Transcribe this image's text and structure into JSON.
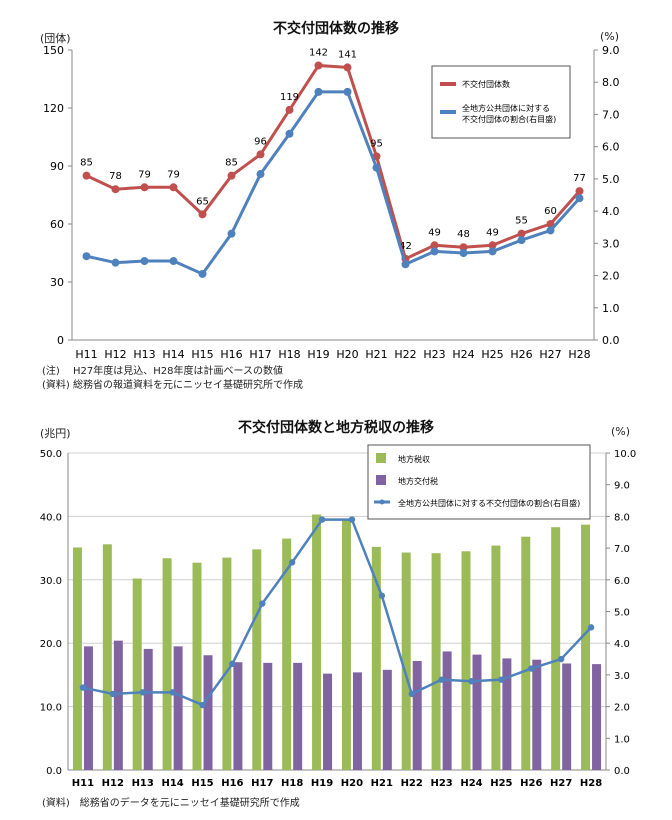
{
  "chart_data": [
    {
      "type": "line",
      "title": "不交付団体数の推移",
      "left_unit": "(団体)",
      "right_unit": "(%)",
      "categories": [
        "H11",
        "H12",
        "H13",
        "H14",
        "H15",
        "H16",
        "H17",
        "H18",
        "H19",
        "H20",
        "H21",
        "H22",
        "H23",
        "H24",
        "H25",
        "H26",
        "H27",
        "H28"
      ],
      "left_ticks": [
        "0",
        "30",
        "60",
        "90",
        "120",
        "150"
      ],
      "right_ticks": [
        "0.0",
        "1.0",
        "2.0",
        "3.0",
        "4.0",
        "5.0",
        "6.0",
        "7.0",
        "8.0",
        "9.0"
      ],
      "ylim_left": [
        0,
        150
      ],
      "ylim_right": [
        0,
        9
      ],
      "series": [
        {
          "name": "不交付団体数",
          "axis": "left",
          "color": "#c0504d",
          "values": [
            85,
            78,
            79,
            79,
            65,
            85,
            96,
            119,
            142,
            141,
            95,
            42,
            49,
            48,
            49,
            55,
            60,
            77
          ],
          "data_labels": [
            "85",
            "78",
            "79",
            "79",
            "65",
            "85",
            "96",
            "119",
            "142",
            "141",
            "95",
            "42",
            "49",
            "48",
            "49",
            "55",
            "60",
            "77"
          ]
        },
        {
          "name": "全地方公共団体に対する\n不交付団体の割合(右目盛)",
          "axis": "right",
          "color": "#4f81bd",
          "values": [
            2.6,
            2.4,
            2.45,
            2.45,
            2.05,
            3.3,
            5.15,
            6.4,
            7.7,
            7.7,
            5.35,
            2.35,
            2.75,
            2.7,
            2.75,
            3.1,
            3.4,
            4.4
          ]
        }
      ],
      "legend_position": "top-right",
      "notes": [
        "(注)　 H27年度は見込、H28年度は計画ベースの数値",
        "(資料) 総務省の報道資料を元にニッセイ基礎研究所で作成"
      ]
    },
    {
      "type": "bar",
      "title": "不交付団体数と地方税収の推移",
      "left_unit": "(兆円)",
      "right_unit": "(%)",
      "categories": [
        "H11",
        "H12",
        "H13",
        "H14",
        "H15",
        "H16",
        "H17",
        "H18",
        "H19",
        "H20",
        "H21",
        "H22",
        "H23",
        "H24",
        "H25",
        "H26",
        "H27",
        "H28"
      ],
      "left_ticks": [
        "0.0",
        "10.0",
        "20.0",
        "30.0",
        "40.0",
        "50.0"
      ],
      "right_ticks": [
        "0.0",
        "1.0",
        "2.0",
        "3.0",
        "4.0",
        "5.0",
        "6.0",
        "7.0",
        "8.0",
        "9.0",
        "10.0"
      ],
      "ylim_left": [
        0,
        50
      ],
      "ylim_right": [
        0,
        10
      ],
      "grid": true,
      "series": [
        {
          "name": "地方税収",
          "kind": "bar",
          "axis": "left",
          "color": "#9bbb59",
          "values": [
            35.1,
            35.6,
            30.2,
            33.4,
            32.7,
            33.5,
            34.8,
            36.5,
            40.3,
            39.5,
            35.2,
            34.3,
            34.2,
            34.5,
            35.4,
            36.8,
            38.3,
            38.7
          ]
        },
        {
          "name": "地方交付税",
          "kind": "bar",
          "axis": "left",
          "color": "#8064a2",
          "values": [
            19.5,
            20.4,
            19.1,
            19.5,
            18.1,
            17.0,
            16.9,
            16.9,
            15.2,
            15.4,
            15.8,
            17.2,
            18.7,
            18.2,
            17.6,
            17.4,
            16.8,
            16.7
          ]
        },
        {
          "name": "全地方公共団体に対する不交付団体の割合(右目盛)",
          "kind": "line",
          "axis": "right",
          "color": "#4f81bd",
          "values": [
            2.6,
            2.4,
            2.45,
            2.45,
            2.05,
            3.35,
            5.25,
            6.55,
            7.9,
            7.9,
            5.5,
            2.4,
            2.85,
            2.8,
            2.85,
            3.2,
            3.5,
            4.5
          ]
        }
      ],
      "legend_position": "top-right",
      "notes": [
        "(資料)　総務省のデータを元にニッセイ基礎研究所で作成"
      ]
    }
  ]
}
